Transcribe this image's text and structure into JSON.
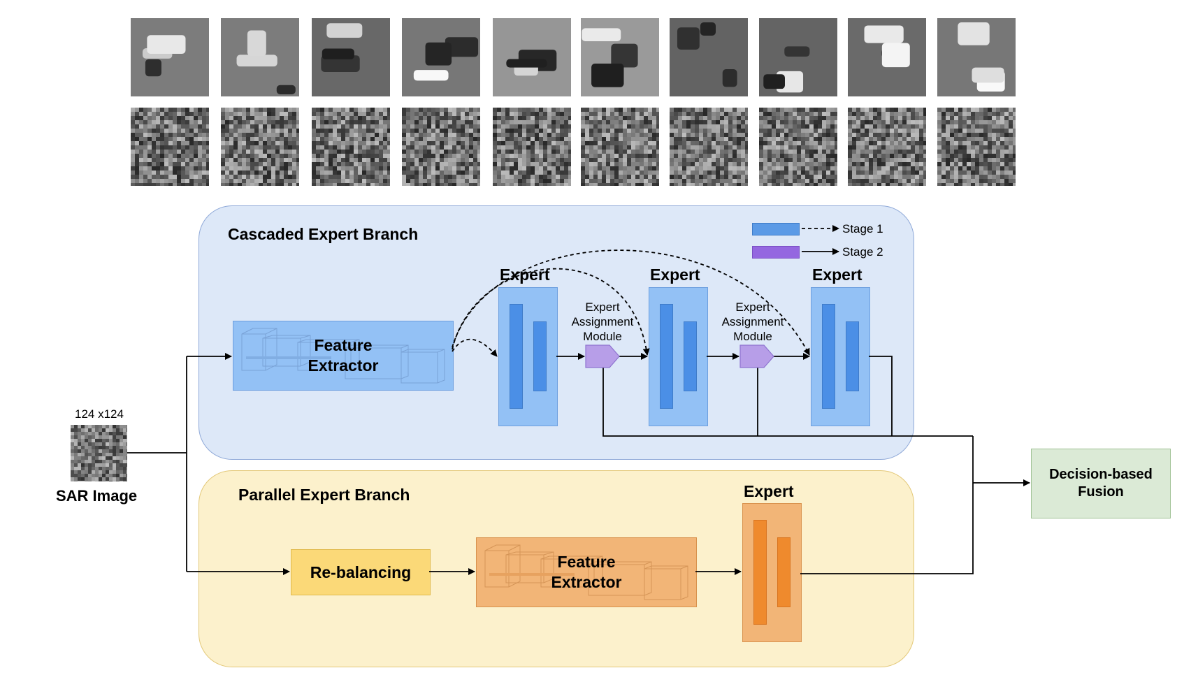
{
  "sample_rows": {
    "optical_count": 10,
    "sar_count": 10
  },
  "input": {
    "size_label": "124 x124",
    "name": "SAR Image"
  },
  "cascaded_branch": {
    "title": "Cascaded Expert Branch",
    "feature_extractor": "Feature Extractor",
    "experts": [
      "Expert",
      "Expert",
      "Expert"
    ],
    "assignment_modules": [
      "Expert Assignment Module",
      "Expert Assignment Module"
    ],
    "legend": [
      {
        "label": "Stage 1",
        "color": "#5b9ae6",
        "line": "dashed"
      },
      {
        "label": "Stage 2",
        "color": "#9467e0",
        "line": "solid"
      }
    ]
  },
  "parallel_branch": {
    "title": "Parallel Expert Branch",
    "rebalancing": "Re-balancing",
    "feature_extractor": "Feature Extractor",
    "expert": "Expert"
  },
  "fusion": {
    "label": "Decision-based Fusion"
  },
  "colors": {
    "cascaded_bg": "#dde8f8",
    "parallel_bg": "#fcf1cc",
    "expert_blue": "#93c1f5",
    "expert_bar_blue": "#4b8fe6",
    "expert_orange": "#f2b577",
    "expert_bar_orange": "#ef8a2d",
    "rebalancing": "#fbd978",
    "fusion": "#dbead6",
    "assignment_module": "#b79ee8"
  }
}
